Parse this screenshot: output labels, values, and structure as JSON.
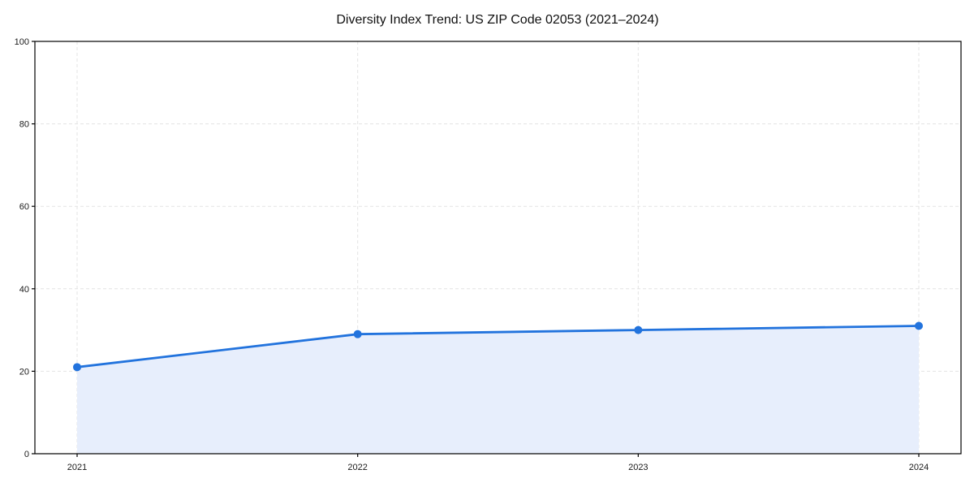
{
  "chart_data": {
    "type": "area",
    "title": "Diversity Index Trend: US ZIP Code 02053 (2021–2024)",
    "categories": [
      "2021",
      "2022",
      "2023",
      "2024"
    ],
    "series": [
      {
        "name": "Diversity Index",
        "values": [
          21,
          29,
          30,
          31
        ]
      }
    ],
    "xlabel": "",
    "ylabel": "",
    "ylim": [
      0,
      100
    ],
    "yticks": [
      0,
      20,
      40,
      60,
      80,
      100
    ],
    "grid": true,
    "grid_style": "dashed",
    "legend": "none",
    "colors": {
      "line": "#2273dd",
      "marker": "#2273dd",
      "fill": "#e7eefc",
      "grid": "#e3e3e3",
      "axis": "#000000",
      "tick_label": "#1a1a1a",
      "title": "#111111",
      "background": "#ffffff"
    }
  }
}
